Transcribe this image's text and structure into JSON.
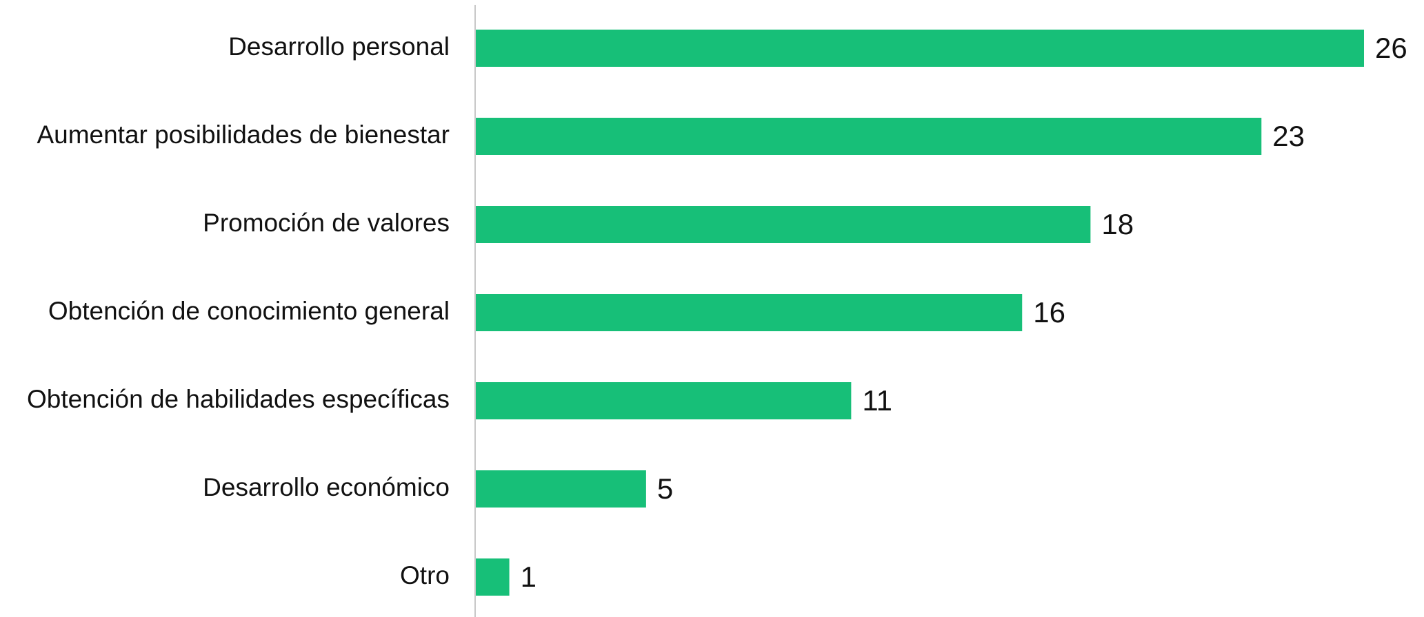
{
  "chart_data": {
    "type": "bar",
    "orientation": "horizontal",
    "categories": [
      "Desarrollo personal",
      "Aumentar posibilidades de bienestar",
      "Promoción de valores",
      "Obtención de conocimiento general",
      "Obtención de habilidades específicas",
      "Desarrollo económico",
      "Otro"
    ],
    "values": [
      26,
      23,
      18,
      16,
      11,
      5,
      1
    ],
    "color": "#17bf78"
  }
}
